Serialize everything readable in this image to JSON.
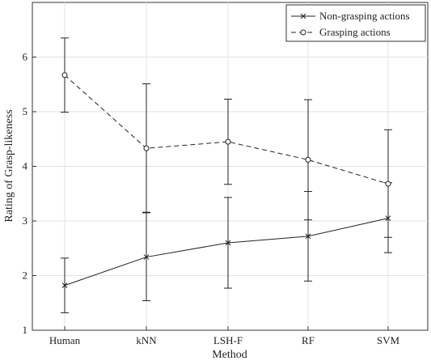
{
  "chart_data": {
    "type": "line",
    "xlabel": "Method",
    "ylabel": "Rating of Grasp-likeness",
    "categories": [
      "Human",
      "kNN",
      "LSH-F",
      "RF",
      "SVM"
    ],
    "ylim": [
      1,
      7
    ],
    "yticks": [
      1,
      2,
      3,
      4,
      5,
      6
    ],
    "grid": true,
    "legend_position": "top-right",
    "series": [
      {
        "name": "Non-grasping actions",
        "line_style": "solid",
        "marker": "x",
        "color": "#222222",
        "values": [
          1.82,
          2.34,
          2.6,
          2.72,
          3.05
        ],
        "error_low": [
          1.32,
          1.54,
          1.77,
          1.9,
          2.42
        ],
        "error_high": [
          2.32,
          3.16,
          3.43,
          3.54,
          3.7
        ]
      },
      {
        "name": "Grasping actions",
        "line_style": "dashed",
        "marker": "o",
        "color": "#222222",
        "values": [
          5.67,
          4.33,
          4.45,
          4.12,
          3.68
        ],
        "error_low": [
          4.99,
          3.15,
          3.67,
          3.02,
          2.7
        ],
        "error_high": [
          6.35,
          5.51,
          5.23,
          5.22,
          4.67
        ]
      }
    ]
  }
}
